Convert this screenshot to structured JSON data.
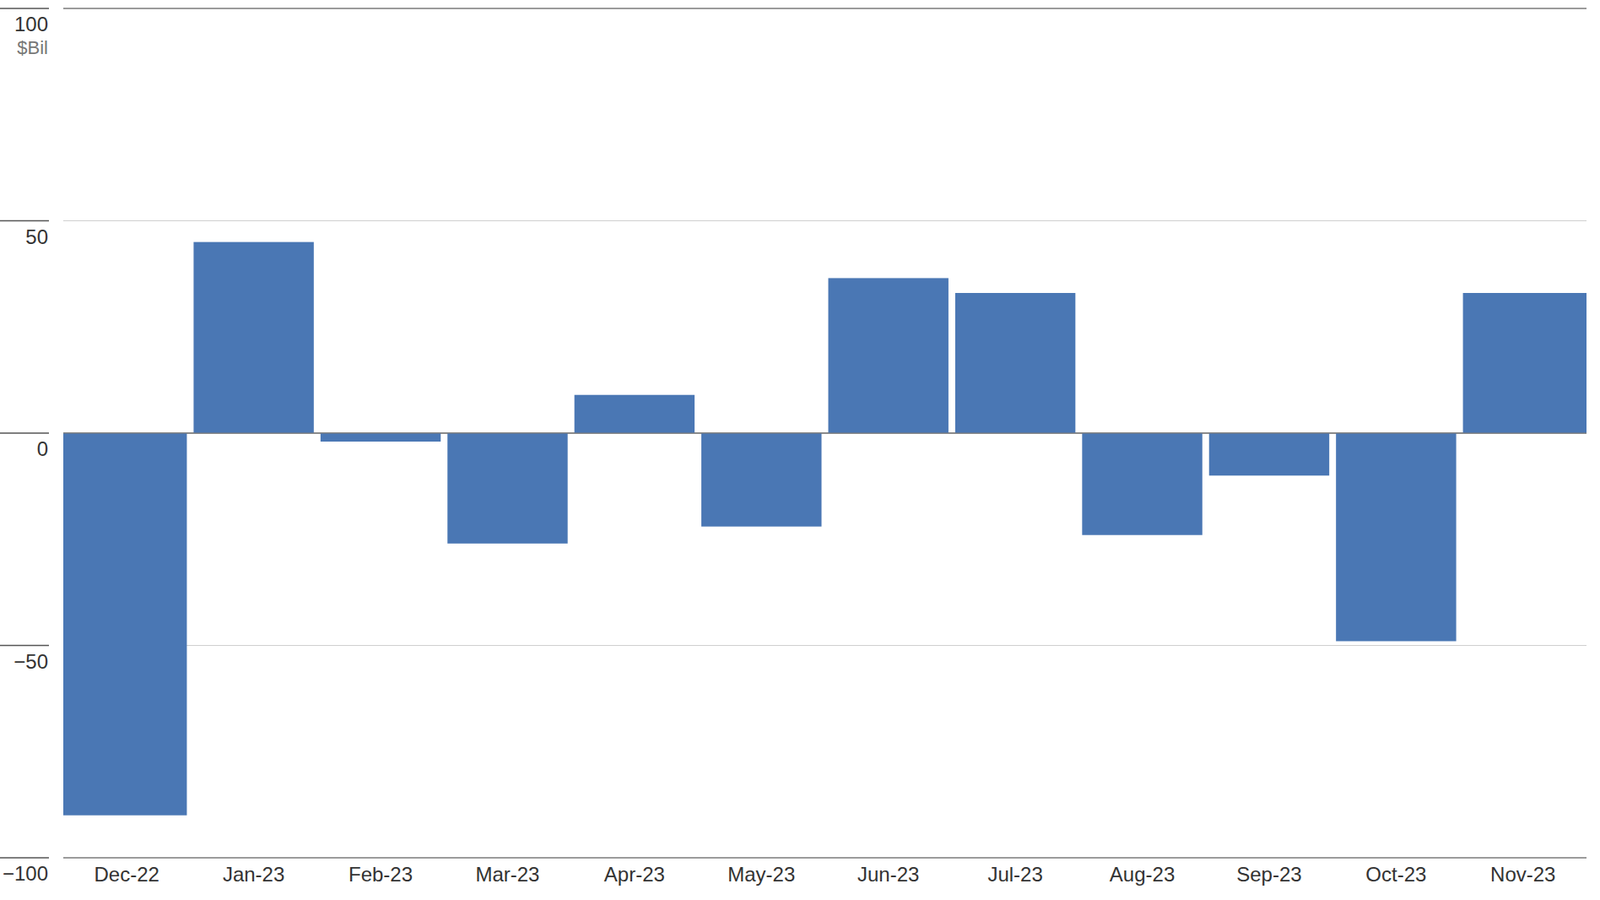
{
  "chart_data": {
    "type": "bar",
    "y_label": "$Bil",
    "categories": [
      "Dec-22",
      "Jan-23",
      "Feb-23",
      "Mar-23",
      "Apr-23",
      "May-23",
      "Jun-23",
      "Jul-23",
      "Aug-23",
      "Sep-23",
      "Oct-23",
      "Nov-23"
    ],
    "values": [
      -90,
      45,
      -2,
      -26,
      9,
      -22,
      36.5,
      33,
      -24,
      -10,
      -49,
      33
    ],
    "color": "#4a77b4",
    "ylim": [
      -100,
      100
    ],
    "yticks": [
      -100,
      -50,
      0,
      50,
      100
    ],
    "grid": true
  }
}
